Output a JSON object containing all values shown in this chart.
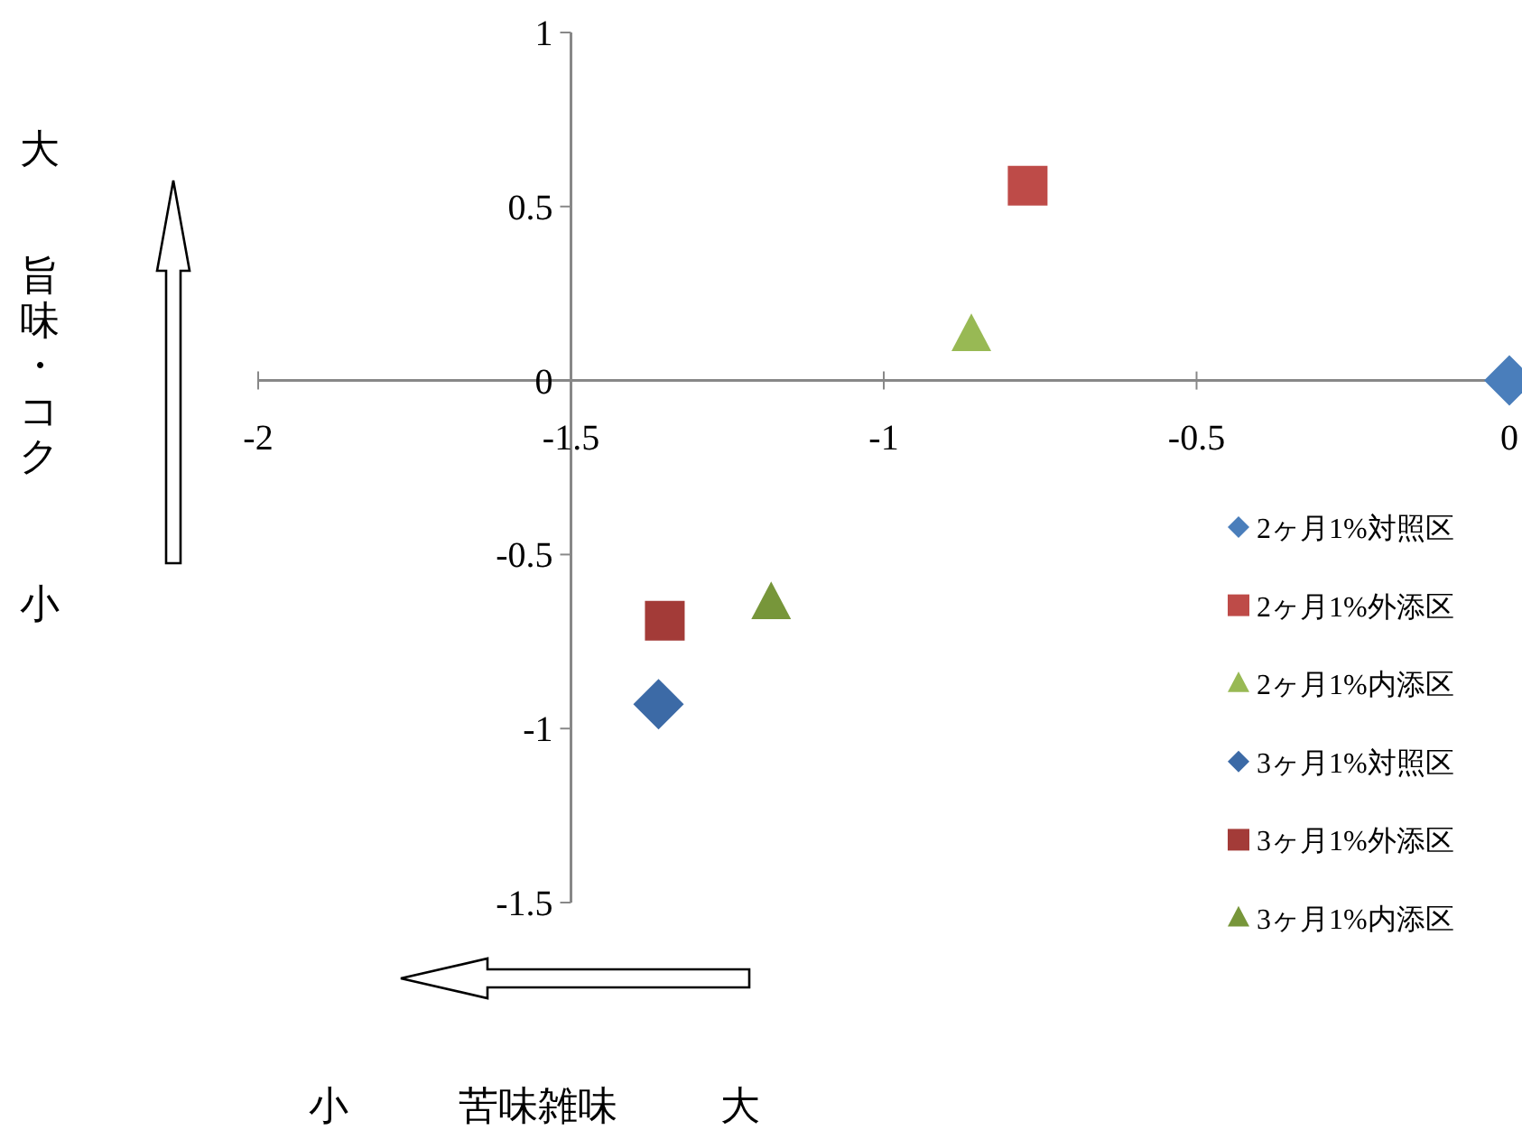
{
  "chart_data": {
    "type": "scatter",
    "xlabel": "苦味雑味",
    "ylabel": "旨味・コク",
    "annotations": [
      "大",
      "小",
      "小",
      "大"
    ],
    "xlim": [
      -2,
      0
    ],
    "ylim": [
      -1.5,
      1
    ],
    "xticks": [
      -2,
      -1.5,
      -1,
      -0.5,
      0
    ],
    "yticks": [
      -1.5,
      -1,
      -0.5,
      0,
      0.5,
      1
    ],
    "grid": false,
    "legend": "right",
    "series": [
      {
        "name": "2ヶ月1%対照区",
        "color": "#4a7ebb",
        "marker": "diamond",
        "x": [
          0
        ],
        "values": [
          0
        ]
      },
      {
        "name": "2ヶ月1%外添区",
        "color": "#be4b48",
        "marker": "square",
        "x": [
          -0.77
        ],
        "values": [
          0.56
        ]
      },
      {
        "name": "2ヶ月1%内添区",
        "color": "#98b954",
        "marker": "triangle",
        "x": [
          -0.86
        ],
        "values": [
          0.13
        ]
      },
      {
        "name": "3ヶ月1%対照区",
        "color": "#3c6aa6",
        "marker": "diamond",
        "x": [
          -1.36
        ],
        "values": [
          -0.93
        ]
      },
      {
        "name": "3ヶ月1%外添区",
        "color": "#a33b38",
        "marker": "square",
        "x": [
          -1.35
        ],
        "values": [
          -0.69
        ]
      },
      {
        "name": "3ヶ月1%内添区",
        "color": "#77963a",
        "marker": "triangle",
        "x": [
          -1.18
        ],
        "values": [
          -0.64
        ]
      }
    ]
  }
}
